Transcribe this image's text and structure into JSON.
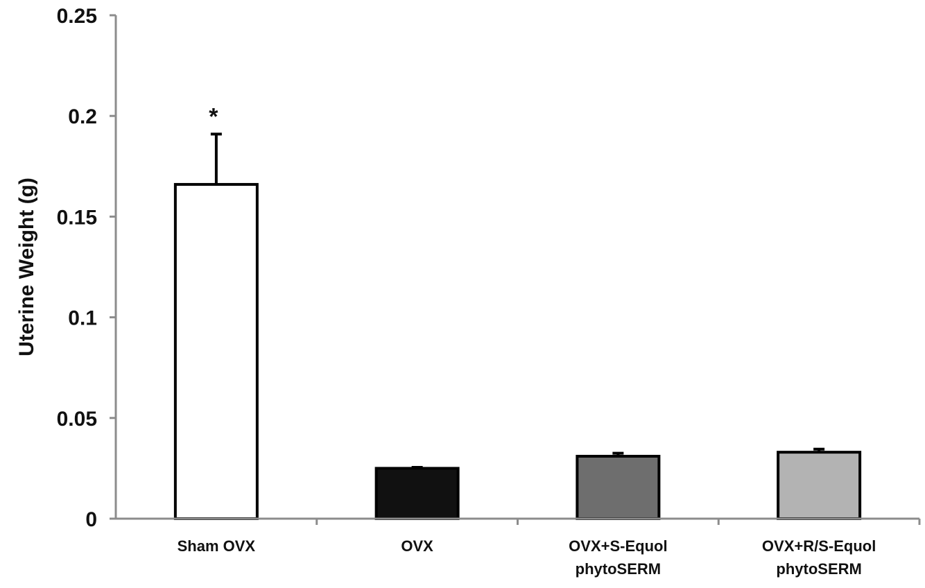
{
  "chart_data": {
    "type": "bar",
    "title": "",
    "xlabel": "",
    "ylabel": "Uterine Weight (g)",
    "ylim": [
      0,
      0.25
    ],
    "yticks": [
      0,
      0.05,
      0.1,
      0.15,
      0.2,
      0.25
    ],
    "ytick_labels": [
      "0",
      "0.05",
      "0.1",
      "0.15",
      "0.2",
      "0.25"
    ],
    "grid": false,
    "categories": [
      [
        "Sham OVX"
      ],
      [
        "OVX"
      ],
      [
        "OVX+S-Equol",
        "phytoSERM"
      ],
      [
        "OVX+R/S-Equol",
        "phytoSERM"
      ]
    ],
    "values": [
      0.166,
      0.025,
      0.031,
      0.033
    ],
    "error_upper": [
      0.025,
      0.0005,
      0.0015,
      0.0015
    ],
    "bar_colors": [
      "#ffffff",
      "#111111",
      "#6e6e6e",
      "#b3b3b3"
    ],
    "bar_edge_color": "#000000",
    "axis_color": "#8c8c8c",
    "annotations": [
      {
        "category_index": 0,
        "text": "*"
      }
    ]
  }
}
